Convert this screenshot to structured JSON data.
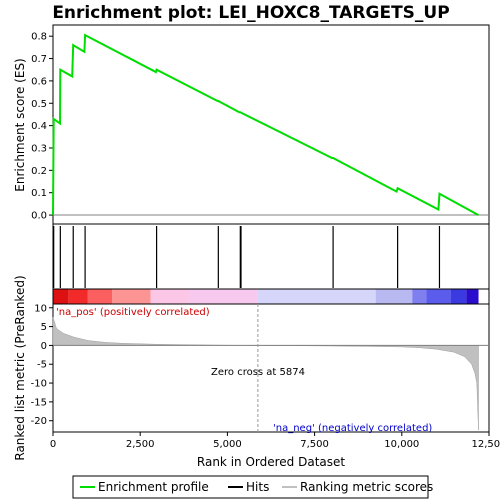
{
  "chart_data": {
    "type": "line",
    "title": "Enrichment plot: LEI_HOXC8_TARGETS_UP",
    "xlabel": "Rank in Ordered Dataset",
    "ylabel_top": "Enrichment score (ES)",
    "ylabel_bottom": "Ranked list metric (PreRanked)",
    "xlim": [
      0,
      12500
    ],
    "es_ylim": [
      -0.04,
      0.85
    ],
    "metric_ylim": [
      -23,
      11
    ],
    "x_ticks": [
      0,
      2500,
      5000,
      7500,
      10000,
      12500
    ],
    "x_tick_labels": [
      "0",
      "2,500",
      "5,000",
      "7,500",
      "10,000",
      "12,500"
    ],
    "es_ticks": [
      0.0,
      0.1,
      0.2,
      0.3,
      0.4,
      0.5,
      0.6,
      0.7,
      0.8
    ],
    "es_tick_labels": [
      "0.0",
      "0.1",
      "0.2",
      "0.3",
      "0.4",
      "0.5",
      "0.6",
      "0.7",
      "0.8"
    ],
    "metric_ticks": [
      10,
      5,
      0,
      -5,
      -10,
      -15,
      -20
    ],
    "metric_tick_labels": [
      "10",
      "5",
      "0",
      "-5",
      "-10",
      "-15",
      "-20"
    ],
    "es_curve": [
      [
        0,
        0.0
      ],
      [
        20,
        0.43
      ],
      [
        200,
        0.41
      ],
      [
        210,
        0.65
      ],
      [
        550,
        0.62
      ],
      [
        580,
        0.76
      ],
      [
        900,
        0.73
      ],
      [
        920,
        0.805
      ],
      [
        2950,
        0.64
      ],
      [
        2970,
        0.65
      ],
      [
        4720,
        0.51
      ],
      [
        4740,
        0.51
      ],
      [
        5340,
        0.46
      ],
      [
        5370,
        0.46
      ],
      [
        5390,
        0.458
      ],
      [
        8000,
        0.255
      ],
      [
        8030,
        0.255
      ],
      [
        9850,
        0.105
      ],
      [
        9880,
        0.12
      ],
      [
        11050,
        0.025
      ],
      [
        11080,
        0.095
      ],
      [
        12200,
        0.0
      ]
    ],
    "hits": [
      20,
      210,
      580,
      920,
      2970,
      4740,
      5370,
      5390,
      8030,
      9880,
      11080
    ],
    "metric_curve": [
      [
        0,
        7.5
      ],
      [
        100,
        4.5
      ],
      [
        300,
        3.2
      ],
      [
        600,
        2.2
      ],
      [
        1000,
        1.3
      ],
      [
        1500,
        0.8
      ],
      [
        2000,
        0.55
      ],
      [
        3000,
        0.3
      ],
      [
        4000,
        0.15
      ],
      [
        5000,
        0.05
      ],
      [
        5874,
        0.0
      ],
      [
        7000,
        -0.08
      ],
      [
        8000,
        -0.15
      ],
      [
        9000,
        -0.25
      ],
      [
        10000,
        -0.4
      ],
      [
        10500,
        -0.6
      ],
      [
        11000,
        -1.0
      ],
      [
        11500,
        -1.8
      ],
      [
        11800,
        -3.0
      ],
      [
        12000,
        -5.0
      ],
      [
        12100,
        -7.5
      ],
      [
        12150,
        -10.0
      ],
      [
        12200,
        -22.5
      ]
    ],
    "heat_segments": [
      [
        0,
        450,
        "#dd1111"
      ],
      [
        450,
        1000,
        "#f22a2a"
      ],
      [
        1000,
        1700,
        "#fb5f5f"
      ],
      [
        1700,
        2800,
        "#fd9494"
      ],
      [
        2800,
        3900,
        "#fcc6e7"
      ],
      [
        3900,
        5874,
        "#f7c9ee"
      ],
      [
        5874,
        9250,
        "#d6d6fa"
      ],
      [
        9250,
        10300,
        "#b9b9f2"
      ],
      [
        10300,
        10700,
        "#7f7ff0"
      ],
      [
        10700,
        11400,
        "#5b5bec"
      ],
      [
        11400,
        11850,
        "#3a3ae0"
      ],
      [
        11850,
        12200,
        "#2a0ccd"
      ]
    ],
    "annotations": {
      "pos_label": "'na_pos' (positively correlated)",
      "neg_label": "'na_neg' (negatively correlated)",
      "zero_cross_label": "Zero cross at 5874",
      "zero_cross": 5874
    },
    "legend": {
      "placement": "bottom",
      "items": [
        {
          "label": "Enrichment profile",
          "color": "#00dd00"
        },
        {
          "label": "Hits",
          "color": "#000000"
        },
        {
          "label": "Ranking metric scores",
          "color": "#c0c0c0"
        }
      ]
    }
  }
}
